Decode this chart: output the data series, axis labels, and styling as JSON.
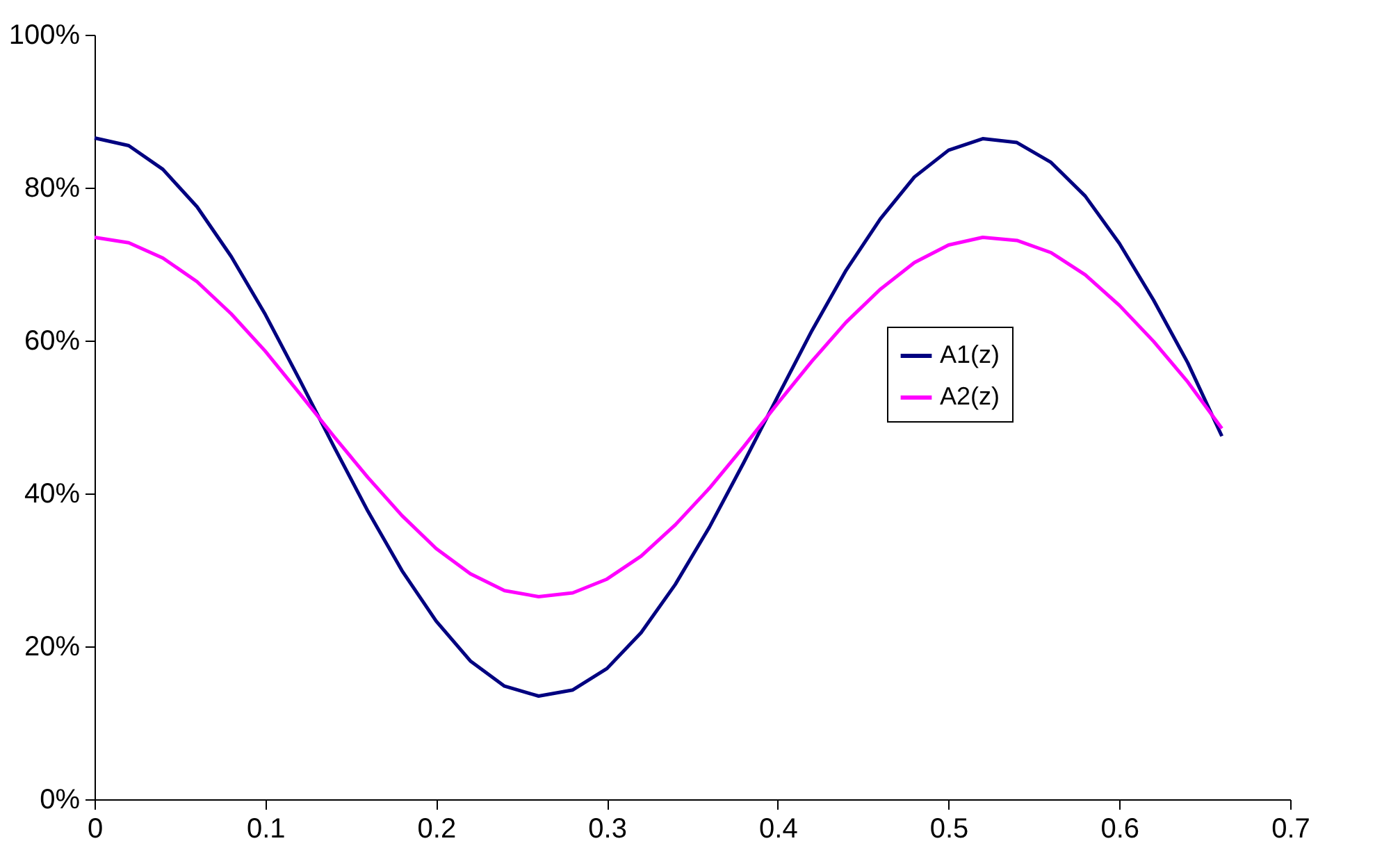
{
  "chart_data": {
    "type": "line",
    "x": [
      0,
      0.02,
      0.04,
      0.06,
      0.08,
      0.1,
      0.12,
      0.14,
      0.16,
      0.18,
      0.2,
      0.22,
      0.24,
      0.26,
      0.28,
      0.3,
      0.32,
      0.34,
      0.36,
      0.38,
      0.4,
      0.42,
      0.44,
      0.46,
      0.48,
      0.5,
      0.52,
      0.54,
      0.56,
      0.58,
      0.6,
      0.62,
      0.64,
      0.66
    ],
    "series": [
      {
        "name": "A1(z)",
        "color": "#000080",
        "values": [
          86.5,
          85.5,
          82.4,
          77.5,
          71.0,
          63.4,
          54.9,
          46.2,
          37.7,
          29.9,
          23.3,
          18.1,
          14.8,
          13.5,
          14.3,
          17.1,
          21.8,
          28.1,
          35.6,
          44.0,
          52.7,
          61.3,
          69.2,
          75.9,
          81.4,
          84.9,
          86.4,
          85.9,
          83.3,
          78.9,
          72.7,
          65.3,
          57.1,
          47.5
        ]
      },
      {
        "name": "A2(z)",
        "color": "#ff00ff",
        "values": [
          73.5,
          72.8,
          70.8,
          67.7,
          63.5,
          58.6,
          53.1,
          47.5,
          42.1,
          37.1,
          32.8,
          29.5,
          27.3,
          26.5,
          27.0,
          28.8,
          31.8,
          35.9,
          40.7,
          46.1,
          51.8,
          57.3,
          62.4,
          66.7,
          70.2,
          72.5,
          73.5,
          73.1,
          71.5,
          68.6,
          64.6,
          59.9,
          54.6,
          48.5
        ]
      }
    ],
    "xlim": [
      0,
      0.7
    ],
    "xticks": [
      0,
      0.1,
      0.2,
      0.3,
      0.4,
      0.5,
      0.6,
      0.7
    ],
    "ylim": [
      0,
      100
    ],
    "yticks": [
      {
        "value": 0,
        "label": "0%"
      },
      {
        "value": 20,
        "label": "20%"
      },
      {
        "value": 40,
        "label": "40%"
      },
      {
        "value": 60,
        "label": "60%"
      },
      {
        "value": 80,
        "label": "80%"
      },
      {
        "value": 100,
        "label": "100%"
      }
    ],
    "grid": false,
    "legend": "right",
    "marker": "none",
    "line_style": "solid"
  }
}
